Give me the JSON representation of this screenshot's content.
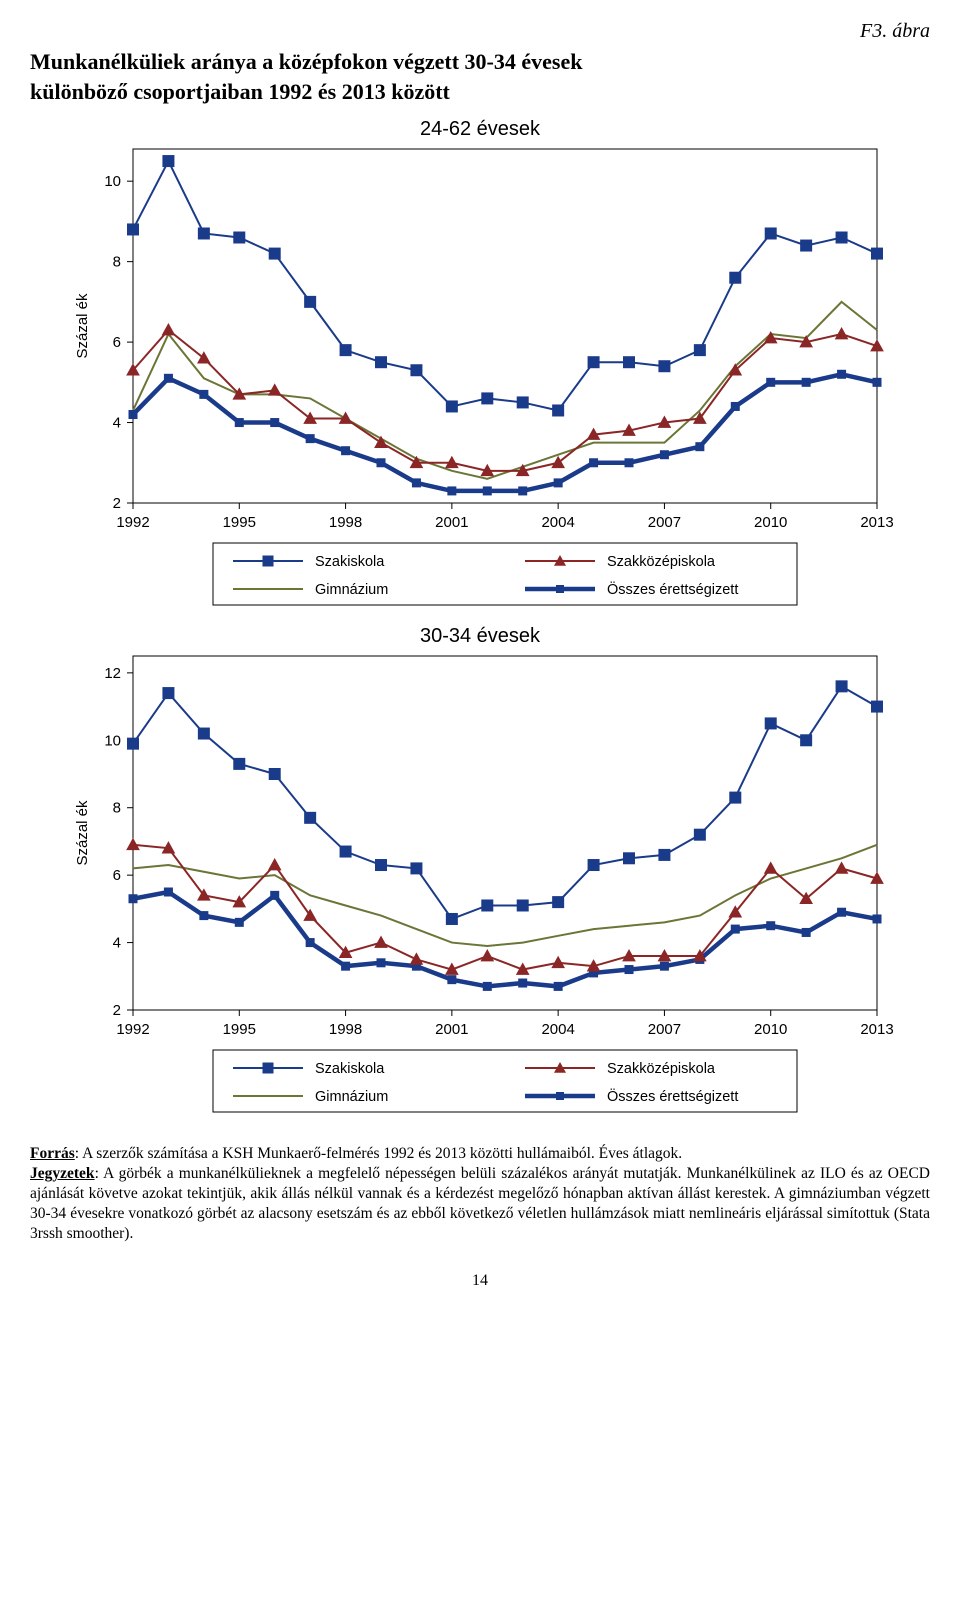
{
  "figure_label": "F3. ábra",
  "title_line1": "Munkanélküliek aránya a középfokon végzett 30-34 évesek",
  "title_line2": "különböző csoportjaiban 1992 és 2013 között",
  "page_number": "14",
  "notes": {
    "source_label": "Forrás",
    "source_text": ": A szerzők számítása a KSH Munkaerő-felmérés 1992 és 2013 közötti hullámaiból. Éves átlagok.",
    "notes_label": "Jegyzetek",
    "notes_text": ": A görbék a munkanélkülieknek a megfelelő népességen belüli százalékos arányát mutatják. Munkanélkülinek az ILO és az OECD ajánlását követve azokat tekintjük, akik állás nélkül vannak és a kérdezést megelőző hónapban aktívan állást kerestek. A gimnáziumban végzett 30-34 évesekre vonatkozó görbét az alacsony esetszám és az ebből következő véletlen hullámzások miatt nemlineáris eljárással simítottuk (Stata 3rssh smoother)."
  },
  "legend": {
    "szakiskola": "Szakiskola",
    "szakkozep": "Szakközépiskola",
    "gimnazium": "Gimnázium",
    "osszes": "Összes érettségizett"
  },
  "chart_common": {
    "xlabel_years": [
      1992,
      1995,
      1998,
      2001,
      2004,
      2007,
      2010,
      2013
    ],
    "ylabel": "Százal ék",
    "plot_bg": "#ffffff",
    "axis_color": "#000000",
    "tick_fontsize": 15,
    "legend_fontsize": 14,
    "colors": {
      "szakiskola": "#1a3a8a",
      "szakkozep": "#8b2626",
      "gimnazium": "#6b7536",
      "osszes": "#1a3a8a"
    },
    "markers": {
      "szakiskola": "square",
      "szakkozep": "triangle",
      "gimnazium": "none",
      "osszes": "square"
    },
    "line_widths": {
      "szakiskola": 2,
      "szakkozep": 2,
      "gimnazium": 2,
      "osszes": 4.5
    }
  },
  "chart1": {
    "title": "24-62 évesek",
    "ylim": [
      2,
      10.8
    ],
    "yticks": [
      2,
      4,
      6,
      8,
      10
    ],
    "xlim": [
      1992,
      2013
    ],
    "years": [
      1992,
      1993,
      1994,
      1995,
      1996,
      1997,
      1998,
      1999,
      2000,
      2001,
      2002,
      2003,
      2004,
      2005,
      2006,
      2007,
      2008,
      2009,
      2010,
      2011,
      2012,
      2013
    ],
    "series": {
      "szakiskola": [
        8.8,
        10.5,
        8.7,
        8.6,
        8.2,
        7.0,
        5.8,
        5.5,
        5.3,
        4.4,
        4.6,
        4.5,
        4.3,
        5.5,
        5.5,
        5.4,
        5.8,
        7.6,
        8.7,
        8.4,
        8.6,
        8.2
      ],
      "szakkozep": [
        5.3,
        6.3,
        5.6,
        4.7,
        4.8,
        4.1,
        4.1,
        3.5,
        3.0,
        3.0,
        2.8,
        2.8,
        3.0,
        3.7,
        3.8,
        4.0,
        4.1,
        5.3,
        6.1,
        6.0,
        6.2,
        5.9
      ],
      "gimnazium": [
        4.3,
        6.2,
        5.1,
        4.7,
        4.7,
        4.6,
        4.1,
        3.6,
        3.1,
        2.8,
        2.6,
        2.9,
        3.2,
        3.5,
        3.5,
        3.5,
        4.3,
        5.4,
        6.2,
        6.1,
        7.0,
        6.3
      ],
      "osszes": [
        4.2,
        5.1,
        4.7,
        4.0,
        4.0,
        3.6,
        3.3,
        3.0,
        2.5,
        2.3,
        2.3,
        2.3,
        2.5,
        3.0,
        3.0,
        3.2,
        3.4,
        4.4,
        5.0,
        5.0,
        5.2,
        5.0
      ]
    }
  },
  "chart2": {
    "title": "30-34 évesek",
    "ylim": [
      2,
      12.5
    ],
    "yticks": [
      2,
      4,
      6,
      8,
      10,
      12
    ],
    "xlim": [
      1992,
      2013
    ],
    "years": [
      1992,
      1993,
      1994,
      1995,
      1996,
      1997,
      1998,
      1999,
      2000,
      2001,
      2002,
      2003,
      2004,
      2005,
      2006,
      2007,
      2008,
      2009,
      2010,
      2011,
      2012,
      2013
    ],
    "series": {
      "szakiskola": [
        9.9,
        11.4,
        10.2,
        9.3,
        9.0,
        7.7,
        6.7,
        6.3,
        6.2,
        4.7,
        5.1,
        5.1,
        5.2,
        6.3,
        6.5,
        6.6,
        7.2,
        8.3,
        10.5,
        10.0,
        11.6,
        11.0
      ],
      "szakkozep": [
        6.9,
        6.8,
        5.4,
        5.2,
        6.3,
        4.8,
        3.7,
        4.0,
        3.5,
        3.2,
        3.6,
        3.2,
        3.4,
        3.3,
        3.6,
        3.6,
        3.6,
        4.9,
        6.2,
        5.3,
        6.2,
        5.9
      ],
      "gimnazium": [
        6.2,
        6.3,
        6.1,
        5.9,
        6.0,
        5.4,
        5.1,
        4.8,
        4.4,
        4.0,
        3.9,
        4.0,
        4.2,
        4.4,
        4.5,
        4.6,
        4.8,
        5.4,
        5.9,
        6.2,
        6.5,
        6.9
      ],
      "osszes": [
        5.3,
        5.5,
        4.8,
        4.6,
        5.4,
        4.0,
        3.3,
        3.4,
        3.3,
        2.9,
        2.7,
        2.8,
        2.7,
        3.1,
        3.2,
        3.3,
        3.5,
        4.4,
        4.5,
        4.3,
        4.9,
        4.7
      ]
    }
  }
}
